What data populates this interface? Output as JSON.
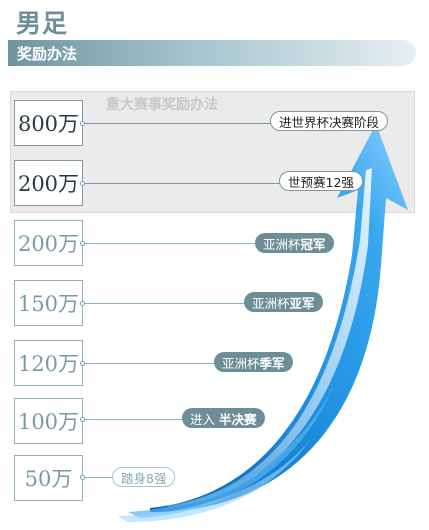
{
  "title": "男足",
  "subtitle": "奖励办法",
  "major_label": "重大赛事奖励办法",
  "rows": [
    {
      "amount": "800万",
      "event_prefix": "进世界杯决赛阶段",
      "event_bold": "",
      "event_suffix": ""
    },
    {
      "amount": "200万",
      "event_prefix": "世预赛12强",
      "event_bold": "",
      "event_suffix": ""
    },
    {
      "amount": "200万",
      "event_prefix": "亚洲杯",
      "event_bold": "冠军",
      "event_suffix": ""
    },
    {
      "amount": "150万",
      "event_prefix": "亚洲杯",
      "event_bold": "亚军",
      "event_suffix": ""
    },
    {
      "amount": "120万",
      "event_prefix": "亚洲杯",
      "event_bold": "季军",
      "event_suffix": ""
    },
    {
      "amount": "100万",
      "event_prefix": "进入",
      "event_bold": "半决赛",
      "event_suffix": ""
    },
    {
      "amount": "50万",
      "event_prefix": "踏身8强",
      "event_bold": "",
      "event_suffix": ""
    }
  ],
  "colors": {
    "arrow_dark": "#0a5fb0",
    "arrow_mid": "#1f8fe0",
    "arrow_light": "#8fd0ff",
    "frame": "#8fb2bd"
  },
  "icons": {
    "arrow": "rising-arrow-icon"
  }
}
